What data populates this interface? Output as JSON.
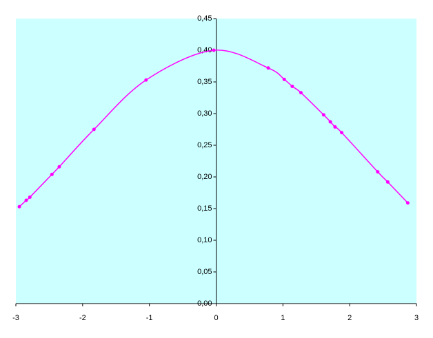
{
  "chart_data": {
    "type": "scatter-line",
    "x": [
      -2.948,
      -2.845,
      -2.79,
      -2.46,
      -2.35,
      -1.83,
      -1.05,
      -0.035,
      0.78,
      1.02,
      1.14,
      1.27,
      1.61,
      1.71,
      1.78,
      1.88,
      2.42,
      2.57,
      2.87
    ],
    "series": [
      {
        "color": "#ff00ff",
        "values": [
          0.153,
          0.163,
          0.168,
          0.204,
          0.216,
          0.275,
          0.353,
          0.4,
          0.372,
          0.354,
          0.343,
          0.333,
          0.298,
          0.287,
          0.279,
          0.27,
          0.208,
          0.192,
          0.159
        ]
      }
    ],
    "xlim": [
      -3,
      3
    ],
    "xticks": [
      -3,
      -2,
      -1,
      0,
      1,
      2,
      3
    ],
    "ylim": [
      0,
      0.45
    ],
    "yticks": [
      {
        "value": 0,
        "label": "0,00"
      },
      {
        "value": 0.05,
        "label": "0,05"
      },
      {
        "value": 0.1,
        "label": "0,10"
      },
      {
        "value": 0.15,
        "label": "0,15"
      },
      {
        "value": 0.2,
        "label": "0,20"
      },
      {
        "value": 0.25,
        "label": "0,25"
      },
      {
        "value": 0.3,
        "label": "0,30"
      },
      {
        "value": 0.35,
        "label": "0,35"
      },
      {
        "value": 0.4,
        "label": "0,40"
      },
      {
        "value": 0.45,
        "label": "0,45"
      }
    ],
    "plot_background": "#ccffff"
  }
}
